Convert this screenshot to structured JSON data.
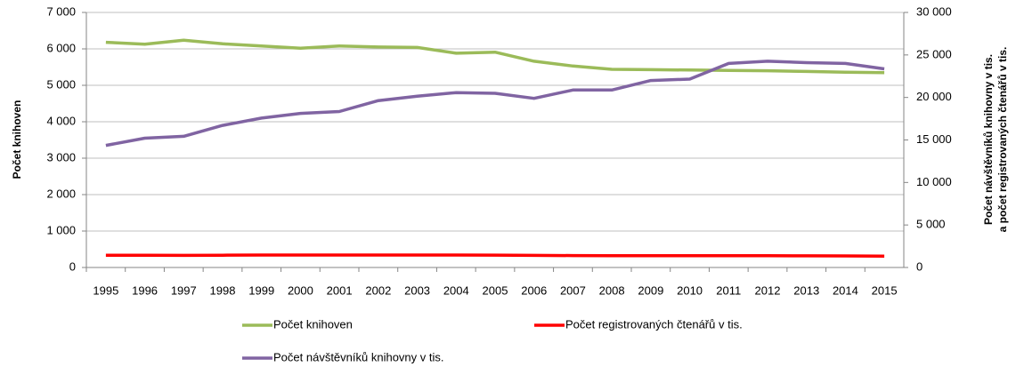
{
  "chart_data": {
    "type": "line",
    "ylabel": "Počet knihoven",
    "y2label": [
      "Počet  návštěvníků knihovny v tis.",
      "a počet registrovaných čtenářů v tis."
    ],
    "categories": [
      "1995",
      "1996",
      "1997",
      "1998",
      "1999",
      "2000",
      "2001",
      "2002",
      "2003",
      "2004",
      "2005",
      "2006",
      "2007",
      "2008",
      "2009",
      "2010",
      "2011",
      "2012",
      "2013",
      "2014",
      "2015"
    ],
    "ylim": [
      0,
      7000
    ],
    "yticks": [
      0,
      {
        "value": 1000,
        "label": "1 000"
      },
      {
        "value": 2000,
        "label": "2 000"
      },
      {
        "value": 3000,
        "label": "3 000"
      },
      {
        "value": 4000,
        "label": "4 000"
      },
      {
        "value": 5000,
        "label": "5 000"
      },
      {
        "value": 6000,
        "label": "6 000"
      },
      {
        "value": 7000,
        "label": "7 000"
      }
    ],
    "y2lim": [
      0,
      30000
    ],
    "y2ticks": [
      0,
      {
        "value": 5000,
        "label": "5 000"
      },
      {
        "value": 10000,
        "label": "10 000"
      },
      {
        "value": 15000,
        "label": "15 000"
      },
      {
        "value": 20000,
        "label": "20 000"
      },
      {
        "value": 25000,
        "label": "25 000"
      },
      {
        "value": 30000,
        "label": "30 000"
      }
    ],
    "grid": true,
    "series": [
      {
        "name": "Počet knihoven",
        "color": "#9bbb59",
        "values": [
          6180,
          6130,
          6240,
          6140,
          6080,
          6020,
          6080,
          6050,
          6040,
          5880,
          5910,
          5660,
          5530,
          5440,
          5430,
          5420,
          5410,
          5400,
          5380,
          5360,
          5350
        ]
      },
      {
        "name": "Počet registrovaných čtenářů v tis.",
        "color": "#ff0000",
        "axis": "y2",
        "values": [
          1430,
          1430,
          1420,
          1440,
          1460,
          1460,
          1460,
          1460,
          1460,
          1460,
          1450,
          1420,
          1400,
          1380,
          1380,
          1380,
          1380,
          1380,
          1370,
          1360,
          1330
        ]
      },
      {
        "name": "Počet návštěvníků knihovny v tis.",
        "color": "#8064a2",
        "axis": "y2",
        "values": [
          14360,
          15210,
          15430,
          16710,
          17570,
          18130,
          18340,
          19630,
          20140,
          20570,
          20490,
          19890,
          20870,
          20870,
          21990,
          22160,
          24000,
          24260,
          24090,
          24000,
          23360
        ]
      }
    ]
  }
}
